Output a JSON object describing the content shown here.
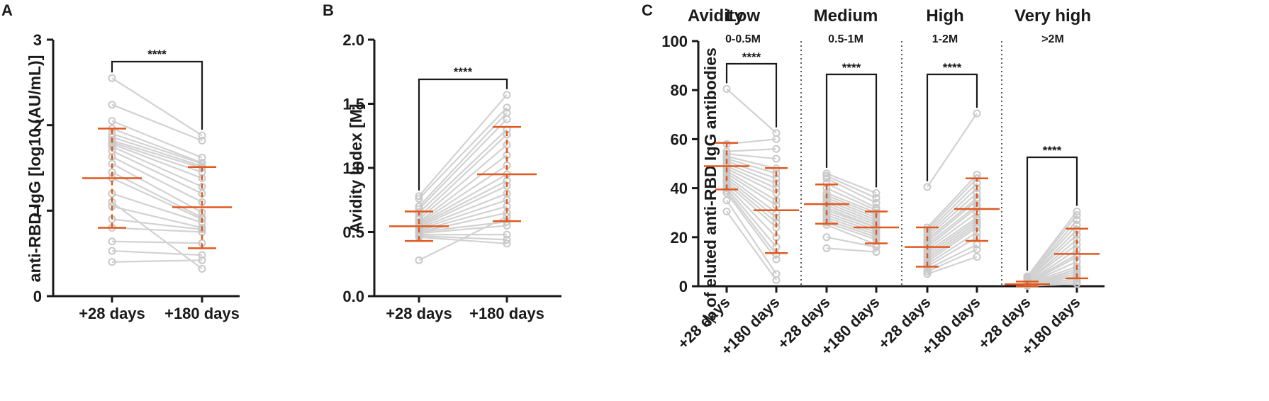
{
  "colors": {
    "accent": "#e0581e",
    "lines": "#d2d2d2",
    "points": "#c9c9c9",
    "axis": "#1a1a1a"
  },
  "chart_data": [
    {
      "panel": "A",
      "type": "scatter",
      "ylabel": "anti-RBD IgG [log10 (AU/mL)]",
      "categories": [
        "+28 days",
        "+180 days"
      ],
      "ylim": [
        0,
        3
      ],
      "yticks": [
        "0",
        "1",
        "2",
        "3"
      ],
      "significance": "****",
      "pairs": [
        [
          2.55,
          1.88
        ],
        [
          2.24,
          1.82
        ],
        [
          2.05,
          1.62
        ],
        [
          1.96,
          1.56
        ],
        [
          1.9,
          1.55
        ],
        [
          1.86,
          1.52
        ],
        [
          1.82,
          1.5
        ],
        [
          1.8,
          1.45
        ],
        [
          1.78,
          1.38
        ],
        [
          1.75,
          1.28
        ],
        [
          1.7,
          1.2
        ],
        [
          1.63,
          1.1
        ],
        [
          1.55,
          0.98
        ],
        [
          1.45,
          0.92
        ],
        [
          1.38,
          0.9
        ],
        [
          1.2,
          0.86
        ],
        [
          1.05,
          0.8
        ],
        [
          0.9,
          0.78
        ],
        [
          0.8,
          0.75
        ],
        [
          0.64,
          0.62
        ],
        [
          0.53,
          0.48
        ],
        [
          0.4,
          0.42
        ],
        [
          1.1,
          0.32
        ]
      ],
      "summary": [
        {
          "mean": 1.38,
          "sd_low": 0.8,
          "sd_high": 1.96
        },
        {
          "mean": 1.04,
          "sd_low": 0.56,
          "sd_high": 1.51
        }
      ]
    },
    {
      "panel": "B",
      "type": "scatter",
      "ylabel": "Avidity Index [M]",
      "categories": [
        "+28 days",
        "+180 days"
      ],
      "ylim": [
        0,
        2.0
      ],
      "yticks": [
        "0.0",
        "0.5",
        "1.0",
        "1.5",
        "2.0"
      ],
      "significance": "****",
      "pairs": [
        [
          0.78,
          1.57
        ],
        [
          0.76,
          1.47
        ],
        [
          0.7,
          1.43
        ],
        [
          0.68,
          1.38
        ],
        [
          0.65,
          1.3
        ],
        [
          0.62,
          1.26
        ],
        [
          0.6,
          1.18
        ],
        [
          0.58,
          1.1
        ],
        [
          0.57,
          1.02
        ],
        [
          0.56,
          0.95
        ],
        [
          0.55,
          0.9
        ],
        [
          0.54,
          0.86
        ],
        [
          0.53,
          0.8
        ],
        [
          0.52,
          0.75
        ],
        [
          0.51,
          0.7
        ],
        [
          0.5,
          0.65
        ],
        [
          0.5,
          0.58
        ],
        [
          0.49,
          0.55
        ],
        [
          0.48,
          0.48
        ],
        [
          0.47,
          0.44
        ],
        [
          0.46,
          0.41
        ],
        [
          0.28,
          0.62
        ]
      ],
      "summary": [
        {
          "mean": 0.545,
          "sd_low": 0.43,
          "sd_high": 0.66
        },
        {
          "mean": 0.95,
          "sd_low": 0.585,
          "sd_high": 1.32
        }
      ]
    },
    {
      "panel": "C",
      "type": "scatter",
      "ylabel": "% of eluted anti-RBD IgG antibodies",
      "header_label": "Avidity",
      "ylim": [
        0,
        100
      ],
      "yticks": [
        "0",
        "20",
        "40",
        "60",
        "80",
        "100"
      ],
      "groups": [
        {
          "title": "Low",
          "range": "0-0.5M",
          "significance": "****",
          "categories": [
            "+28 days",
            "+180 days"
          ],
          "pairs": [
            [
              80.5,
              62.5
            ],
            [
              58,
              60
            ],
            [
              55,
              56
            ],
            [
              54,
              52
            ],
            [
              53,
              48
            ],
            [
              52,
              46
            ],
            [
              51,
              44
            ],
            [
              50,
              42
            ],
            [
              49,
              40
            ],
            [
              48,
              38
            ],
            [
              47,
              35
            ],
            [
              46,
              33
            ],
            [
              45,
              30
            ],
            [
              44,
              28
            ],
            [
              43,
              26
            ],
            [
              42,
              24
            ],
            [
              41,
              20
            ],
            [
              40,
              16
            ],
            [
              39,
              13
            ],
            [
              38,
              11
            ],
            [
              35,
              5
            ],
            [
              30.5,
              2.5
            ]
          ],
          "summary": [
            {
              "mean": 49,
              "sd_low": 39.5,
              "sd_high": 58.5
            },
            {
              "mean": 31,
              "sd_low": 13.5,
              "sd_high": 48.2
            }
          ]
        },
        {
          "title": "Medium",
          "range": "0.5-1M",
          "significance": "****",
          "categories": [
            "+28 days",
            "+180 days"
          ],
          "pairs": [
            [
              46,
              38
            ],
            [
              45,
              36
            ],
            [
              44,
              34
            ],
            [
              42,
              32
            ],
            [
              40,
              31
            ],
            [
              38,
              30
            ],
            [
              37,
              29
            ],
            [
              36,
              28
            ],
            [
              35,
              27
            ],
            [
              34,
              26
            ],
            [
              33,
              25
            ],
            [
              32,
              24
            ],
            [
              31,
              24
            ],
            [
              30,
              23
            ],
            [
              29,
              22
            ],
            [
              28,
              21
            ],
            [
              27,
              20
            ],
            [
              26,
              19
            ],
            [
              25,
              17
            ],
            [
              20,
              16
            ],
            [
              15.5,
              14
            ]
          ],
          "summary": [
            {
              "mean": 33.5,
              "sd_low": 25.5,
              "sd_high": 41.5
            },
            {
              "mean": 24,
              "sd_low": 17.5,
              "sd_high": 30.5
            }
          ]
        },
        {
          "title": "High",
          "range": "1-2M",
          "significance": "****",
          "categories": [
            "+28 days",
            "+180 days"
          ],
          "pairs": [
            [
              40.5,
              70.5
            ],
            [
              24,
              45.5
            ],
            [
              23,
              44
            ],
            [
              22,
              42
            ],
            [
              21,
              40
            ],
            [
              20,
              38
            ],
            [
              19,
              36
            ],
            [
              18,
              35
            ],
            [
              17,
              33
            ],
            [
              16,
              32
            ],
            [
              15,
              30
            ],
            [
              14,
              28
            ],
            [
              13,
              27
            ],
            [
              12,
              26
            ],
            [
              11,
              25
            ],
            [
              10,
              24
            ],
            [
              9,
              22
            ],
            [
              8,
              20
            ],
            [
              7,
              17
            ],
            [
              6,
              15
            ],
            [
              5,
              12
            ]
          ],
          "summary": [
            {
              "mean": 16,
              "sd_low": 8,
              "sd_high": 24
            },
            {
              "mean": 31.5,
              "sd_low": 18.5,
              "sd_high": 44
            }
          ]
        },
        {
          "title": "Very high",
          "range": ">2M",
          "significance": "****",
          "categories": [
            "+28 days",
            "+180 days"
          ],
          "pairs": [
            [
              4,
              30.5
            ],
            [
              3.5,
              29
            ],
            [
              3,
              27
            ],
            [
              3,
              25
            ],
            [
              2.5,
              23
            ],
            [
              2.5,
              21
            ],
            [
              2,
              19
            ],
            [
              2,
              17
            ],
            [
              1.5,
              15
            ],
            [
              1.5,
              13
            ],
            [
              1,
              12
            ],
            [
              1,
              10
            ],
            [
              1,
              8
            ],
            [
              0.5,
              7
            ],
            [
              0.5,
              6
            ],
            [
              0.5,
              5
            ],
            [
              0.5,
              4
            ],
            [
              0.3,
              3
            ],
            [
              0.2,
              2
            ],
            [
              0.1,
              1
            ]
          ],
          "summary": [
            {
              "mean": 0.8,
              "sd_low": 0,
              "sd_high": 1.9
            },
            {
              "mean": 13.2,
              "sd_low": 3.2,
              "sd_high": 23.5
            }
          ]
        }
      ]
    }
  ]
}
